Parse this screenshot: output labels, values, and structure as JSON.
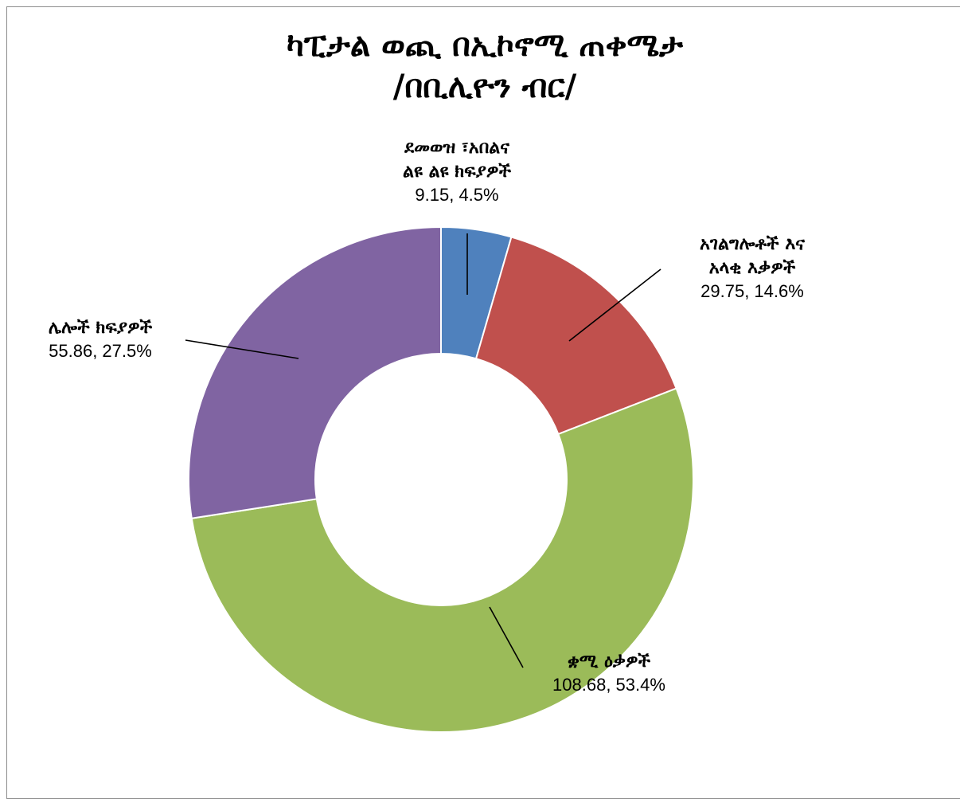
{
  "chart_data": {
    "type": "pie",
    "variant": "donut",
    "title_lines": [
      "ካፒታል ወጪ በኢኮኖሚ ጠቀሜታ",
      "/በቢሊዮን ብር/"
    ],
    "series": [
      {
        "name": "",
        "slices": [
          {
            "label_lines": [
              "ደመወዝ ፣አበልና",
              "ልዩ ልዩ ክፍያዎች"
            ],
            "value": 9.15,
            "value_text": "9.15",
            "percent_text": "4.5%",
            "color": "#4F81BD"
          },
          {
            "label_lines": [
              "አገልግሎቶች እና",
              "አላቂ እቃዎች"
            ],
            "value": 29.75,
            "value_text": "29.75",
            "percent_text": "14.6%",
            "color": "#C0504D"
          },
          {
            "label_lines": [
              "ቋሚ ዕቃዎች"
            ],
            "value": 108.68,
            "value_text": "108.68",
            "percent_text": "53.4%",
            "color": "#9BBB59"
          },
          {
            "label_lines": [
              "ሌሎች ክፍያዎች"
            ],
            "value": 55.86,
            "value_text": "55.86",
            "percent_text": "27.5%",
            "color": "#8064A2"
          }
        ]
      }
    ],
    "start_angle_deg": 0,
    "direction": "clockwise",
    "legend": "none"
  }
}
